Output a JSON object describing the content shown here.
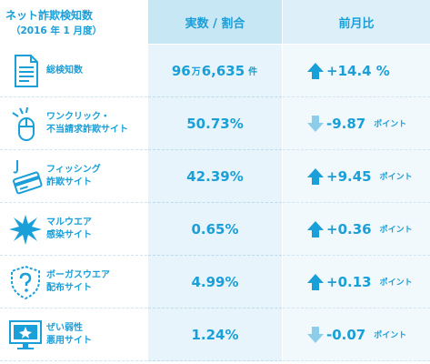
{
  "header": {
    "title": "ネット詐欺検知数",
    "subtitle": "（2016 年 1 月度）",
    "col_value": "実数 / 割合",
    "col_change": "前月比"
  },
  "rows": [
    {
      "label1": "総検知数",
      "label2": "",
      "value_a": "96",
      "value_unit1": "万",
      "value_b": "6,635",
      "value_unit2": "件",
      "change": "+14.4 %",
      "unit": "",
      "direction": "up",
      "icon": "document-icon"
    },
    {
      "label1": "ワンクリック・",
      "label2": "不当請求詐欺サイト",
      "value": "50.73%",
      "change": "-9.87",
      "unit": "ポイント",
      "direction": "down",
      "icon": "mouse-click-icon"
    },
    {
      "label1": "フィッシング",
      "label2": "詐欺サイト",
      "value": "42.39%",
      "change": "+9.45",
      "unit": "ポイント",
      "direction": "up",
      "icon": "fishing-hook-card-icon"
    },
    {
      "label1": "マルウエア",
      "label2": "感染サイト",
      "value": "0.65%",
      "change": "+0.36",
      "unit": "ポイント",
      "direction": "up",
      "icon": "malware-burst-icon"
    },
    {
      "label1": "ボーガスウエア",
      "label2": "配布サイト",
      "value": "4.99%",
      "change": "+0.13",
      "unit": "ポイント",
      "direction": "up",
      "icon": "bogus-shield-icon"
    },
    {
      "label1": "ぜい弱性",
      "label2": "悪用サイト",
      "value": "1.24%",
      "change": "-0.07",
      "unit": "ポイント",
      "direction": "down",
      "icon": "vulnerable-monitor-icon"
    }
  ],
  "colors": {
    "accent": "#1a9fd8",
    "up_arrow": "#1a9fd8",
    "down_arrow": "#8ecde9"
  }
}
